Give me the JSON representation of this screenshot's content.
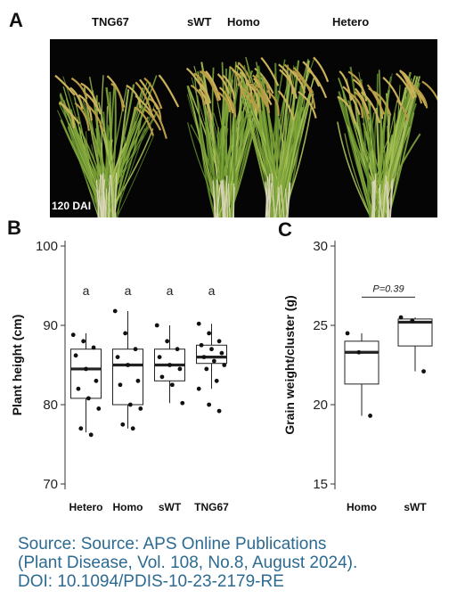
{
  "panel_a": {
    "letter": "A",
    "plant_labels": [
      "TNG67",
      "sWT",
      "Homo",
      "Hetero"
    ],
    "time_label": "120 DAI"
  },
  "chart_data": [
    {
      "panel": "B",
      "type": "box",
      "ylabel": "Plant height (cm)",
      "ylim": [
        70,
        100
      ],
      "yticks": [
        70,
        80,
        90,
        100
      ],
      "categories": [
        "Hetero",
        "Homo",
        "sWT",
        "TNG67"
      ],
      "significance_letters": [
        "a",
        "a",
        "a",
        "a"
      ],
      "boxes": [
        {
          "q1": 80.8,
          "median": 84.5,
          "q3": 87.0,
          "whisker_low": 76.5,
          "whisker_high": 89.0
        },
        {
          "q1": 80.0,
          "median": 85.0,
          "q3": 87.0,
          "whisker_low": 77.0,
          "whisker_high": 91.8
        },
        {
          "q1": 83.0,
          "median": 85.0,
          "q3": 87.0,
          "whisker_low": 80.2,
          "whisker_high": 90.0
        },
        {
          "q1": 85.2,
          "median": 86.0,
          "q3": 87.5,
          "whisker_low": 82.0,
          "whisker_high": 90.2
        }
      ],
      "points": [
        [
          88.8,
          88.0,
          87.2,
          86.2,
          84.5,
          83.0,
          82.0,
          80.8,
          79.5,
          77.0,
          76.2
        ],
        [
          91.8,
          89.0,
          87.0,
          86.0,
          85.0,
          83.0,
          82.5,
          80.0,
          79.5,
          77.5,
          77.0
        ],
        [
          90.0,
          88.0,
          87.0,
          86.0,
          85.0,
          84.5,
          83.5,
          82.5,
          80.2
        ],
        [
          90.2,
          89.0,
          88.0,
          87.5,
          87.0,
          86.5,
          86.0,
          85.5,
          85.0,
          84.5,
          83.0,
          82.0,
          80.0,
          79.2
        ]
      ]
    },
    {
      "panel": "C",
      "type": "box",
      "ylabel": "Grain weight/cluster (g)",
      "ylim": [
        15,
        30
      ],
      "yticks": [
        15,
        20,
        25,
        30
      ],
      "categories": [
        "Homo",
        "sWT"
      ],
      "annotation": "P=0.39",
      "boxes": [
        {
          "q1": 21.3,
          "median": 23.3,
          "q3": 24.0,
          "whisker_low": 19.3,
          "whisker_high": 24.5
        },
        {
          "q1": 23.7,
          "median": 25.2,
          "q3": 25.4,
          "whisker_low": 22.1,
          "whisker_high": 25.5
        }
      ],
      "points": [
        [
          24.5,
          23.3,
          19.3
        ],
        [
          25.5,
          25.3,
          22.1
        ]
      ]
    }
  ],
  "source": {
    "line1": "Source: Source: APS Online Publications",
    "line2": "(Plant Disease, Vol. 108, No.8, August 2024).",
    "line3": "DOI: 10.1094/PDIS-10-23-2179-RE"
  }
}
